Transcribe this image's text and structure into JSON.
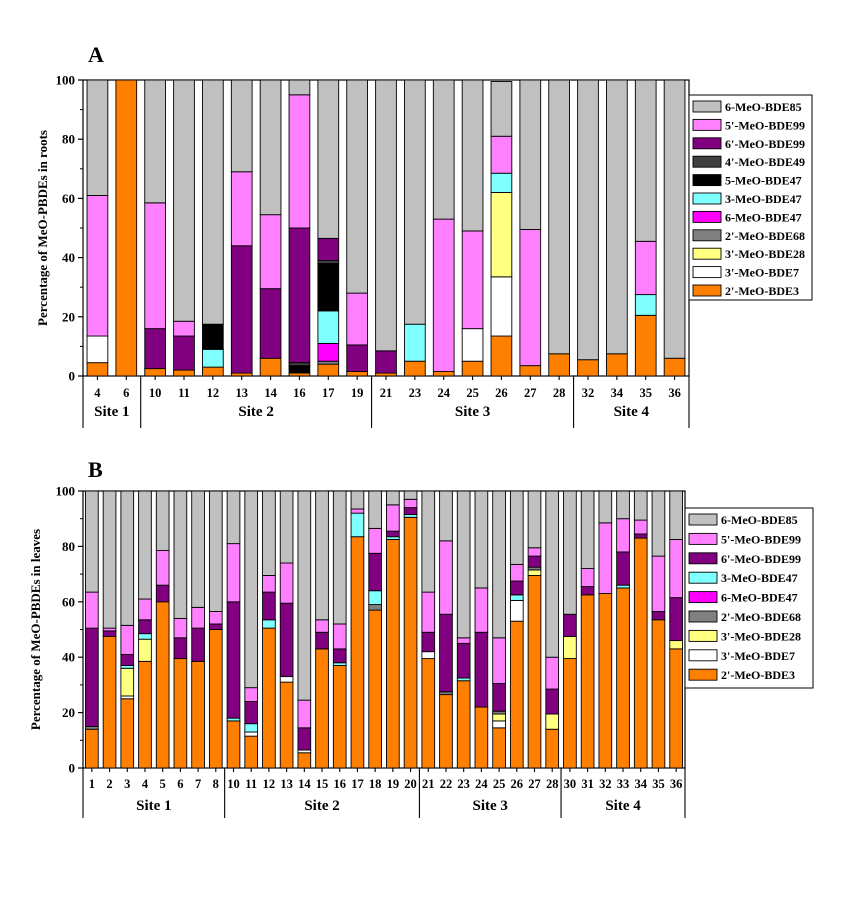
{
  "figure": {
    "background": "#ffffff"
  },
  "panels": {
    "A": {
      "letter": "A"
    },
    "B": {
      "letter": "B"
    }
  },
  "colors": {
    "6-MeO-BDE85": "#c0c0c0",
    "5'-MeO-BDE99": "#ff80ff",
    "6'-MeO-BDE99": "#800080",
    "4'-MeO-BDE49": "#404040",
    "5-MeO-BDE47": "#000000",
    "3-MeO-BDE47": "#80ffff",
    "6-MeO-BDE47": "#ff00ff",
    "2'-MeO-BDE68": "#808080",
    "3'-MeO-BDE28": "#ffff80",
    "3'-MeO-BDE7": "#ffffff",
    "2'-MeO-BDE3": "#ff8000"
  },
  "chart_data": [
    {
      "type": "bar",
      "stacked": true,
      "panel": "A",
      "title": "",
      "ylabel": "Percentage of MeO-PBDEs in roots",
      "xlabel": "",
      "ylim": [
        0,
        100
      ],
      "yticks": [
        0,
        20,
        40,
        60,
        80,
        100
      ],
      "grid": false,
      "legend_position": "right",
      "categories": [
        "4",
        "6",
        "10",
        "11",
        "12",
        "13",
        "14",
        "16",
        "17",
        "19",
        "21",
        "23",
        "24",
        "25",
        "26",
        "27",
        "28",
        "32",
        "34",
        "35",
        "36"
      ],
      "groups": [
        {
          "label": "Site 1",
          "count": 2
        },
        {
          "label": "Site 2",
          "count": 8
        },
        {
          "label": "Site 3",
          "count": 7
        },
        {
          "label": "Site 4",
          "count": 4
        }
      ],
      "legend": [
        "6-MeO-BDE85",
        "5'-MeO-BDE99",
        "6'-MeO-BDE99",
        "4'-MeO-BDE49",
        "5-MeO-BDE47",
        "3-MeO-BDE47",
        "6-MeO-BDE47",
        "2'-MeO-BDE68",
        "3'-MeO-BDE28",
        "3'-MeO-BDE7",
        "2'-MeO-BDE3"
      ],
      "series": [
        {
          "name": "2'-MeO-BDE3",
          "values": [
            4.5,
            100,
            2.5,
            2,
            3,
            1,
            6,
            1,
            4,
            1.5,
            1,
            5,
            1.5,
            5,
            13.5,
            3.5,
            7.5,
            5.5,
            7.5,
            20.5,
            6
          ]
        },
        {
          "name": "3'-MeO-BDE7",
          "values": [
            9,
            0,
            0,
            0,
            0,
            0,
            0,
            0,
            0,
            0,
            0,
            0,
            0,
            11,
            20,
            0,
            0,
            0,
            0,
            0,
            0
          ]
        },
        {
          "name": "3'-MeO-BDE28",
          "values": [
            0,
            0,
            0,
            0,
            0,
            0,
            0,
            0,
            0,
            0,
            0,
            0,
            0,
            0,
            28.5,
            0,
            0,
            0,
            0,
            0,
            0
          ]
        },
        {
          "name": "2'-MeO-BDE68",
          "values": [
            0,
            0,
            0,
            0,
            0,
            0,
            0,
            0,
            1,
            0,
            0,
            0,
            0,
            0,
            0,
            0,
            0,
            0,
            0,
            0,
            0
          ]
        },
        {
          "name": "6-MeO-BDE47",
          "values": [
            0,
            0,
            0,
            0,
            0,
            0,
            0,
            0,
            6,
            0,
            0,
            0,
            0,
            0,
            0,
            0,
            0,
            0,
            0,
            0,
            0
          ]
        },
        {
          "name": "3-MeO-BDE47",
          "values": [
            0,
            0,
            0,
            0,
            6,
            0,
            0,
            0,
            11,
            0,
            0,
            12.5,
            0,
            0,
            6.5,
            0,
            0,
            0,
            0,
            7,
            0
          ]
        },
        {
          "name": "5-MeO-BDE47",
          "values": [
            0,
            0,
            0,
            0,
            8.5,
            0,
            0,
            2.5,
            16,
            0,
            0,
            0,
            0,
            0,
            0,
            0,
            0,
            0,
            0,
            0,
            0
          ]
        },
        {
          "name": "4'-MeO-BDE49",
          "values": [
            0,
            0,
            0,
            0,
            0,
            0,
            0,
            1,
            1,
            0,
            0,
            0,
            0,
            0,
            0,
            0,
            0,
            0,
            0,
            0,
            0
          ]
        },
        {
          "name": "6'-MeO-BDE99",
          "values": [
            0,
            0,
            13.5,
            11.5,
            0,
            43,
            23.5,
            45.5,
            7.5,
            9,
            7.5,
            0,
            0,
            0,
            0,
            0,
            0,
            0,
            0,
            0,
            0
          ]
        },
        {
          "name": "5'-MeO-BDE99",
          "values": [
            47.5,
            0,
            42.5,
            5,
            0,
            25,
            25,
            45,
            0,
            17.5,
            0,
            0,
            51.5,
            33,
            12.5,
            46,
            0,
            0,
            0,
            18,
            0
          ]
        },
        {
          "name": "6-MeO-BDE85",
          "values": [
            39,
            0,
            41.5,
            81.5,
            82.5,
            31,
            45.5,
            5,
            54,
            72,
            91.5,
            82.5,
            47,
            51,
            18.5,
            50.5,
            92.5,
            94.5,
            92.5,
            54.5,
            94
          ]
        }
      ]
    },
    {
      "type": "bar",
      "stacked": true,
      "panel": "B",
      "title": "",
      "ylabel": "Percentage of MeO-PBDEs in leaves",
      "xlabel": "",
      "ylim": [
        0,
        100
      ],
      "yticks": [
        0,
        20,
        40,
        60,
        80,
        100
      ],
      "grid": false,
      "legend_position": "right",
      "categories": [
        "1",
        "2",
        "3",
        "4",
        "5",
        "6",
        "7",
        "8",
        "10",
        "11",
        "12",
        "13",
        "14",
        "15",
        "16",
        "17",
        "18",
        "19",
        "20",
        "21",
        "22",
        "23",
        "24",
        "25",
        "26",
        "27",
        "28",
        "30",
        "31",
        "32",
        "33",
        "34",
        "35",
        "36"
      ],
      "groups": [
        {
          "label": "Site 1",
          "count": 8
        },
        {
          "label": "Site 2",
          "count": 11
        },
        {
          "label": "Site 3",
          "count": 8
        },
        {
          "label": "Site 4",
          "count": 7
        }
      ],
      "legend": [
        "6-MeO-BDE85",
        "5'-MeO-BDE99",
        "6'-MeO-BDE99",
        "3-MeO-BDE47",
        "6-MeO-BDE47",
        "2'-MeO-BDE68",
        "3'-MeO-BDE28",
        "3'-MeO-BDE7",
        "2'-MeO-BDE3"
      ],
      "series": [
        {
          "name": "2'-MeO-BDE3",
          "values": [
            14,
            47.5,
            25,
            38.5,
            60,
            39.5,
            38.5,
            50,
            17,
            11.5,
            50.5,
            31,
            5.5,
            43,
            37,
            83.5,
            57,
            82.5,
            90.5,
            39.5,
            26.5,
            31.5,
            22,
            14.5,
            53,
            69.5,
            14,
            39.5,
            62.5,
            63,
            65,
            83,
            53.5,
            43
          ]
        },
        {
          "name": "3'-MeO-BDE7",
          "values": [
            0,
            0,
            1,
            0,
            0,
            0,
            0,
            0,
            0,
            1.5,
            0,
            2,
            1,
            0,
            0,
            0,
            0,
            0,
            0,
            2.5,
            0,
            0,
            0,
            2.5,
            7.5,
            0,
            0,
            0,
            0,
            0,
            0,
            0,
            0,
            0
          ]
        },
        {
          "name": "3'-MeO-BDE28",
          "values": [
            0,
            0,
            10,
            8,
            0,
            0,
            0,
            0,
            0,
            0,
            0,
            0,
            0,
            0,
            0,
            0,
            0,
            0,
            0,
            0,
            0,
            0,
            0,
            2.5,
            0,
            2,
            5.5,
            8,
            0,
            0,
            0,
            0,
            0,
            3
          ]
        },
        {
          "name": "2'-MeO-BDE68",
          "values": [
            1,
            0,
            0,
            0,
            0,
            0,
            0,
            0,
            0,
            0,
            0,
            0,
            0,
            0,
            0,
            0,
            2,
            0,
            0,
            0,
            1,
            0,
            0,
            1,
            0,
            1,
            0,
            0,
            0,
            0,
            0,
            0,
            0,
            0
          ]
        },
        {
          "name": "6-MeO-BDE47",
          "values": [
            0,
            0,
            0,
            0,
            0,
            0,
            0,
            0,
            0,
            0,
            0,
            0,
            0,
            0,
            0,
            0,
            0,
            0,
            0,
            0,
            0,
            0,
            0,
            0,
            0,
            0,
            0,
            0,
            0,
            0,
            0,
            0,
            0,
            0
          ]
        },
        {
          "name": "3-MeO-BDE47",
          "values": [
            0,
            0,
            1,
            2,
            0,
            0,
            0,
            0,
            1,
            3,
            3,
            0,
            0,
            0,
            1,
            8.5,
            5,
            1,
            1,
            0,
            0,
            1,
            0,
            0,
            2,
            0,
            0,
            0,
            0,
            0,
            1,
            0,
            0,
            0
          ]
        },
        {
          "name": "6'-MeO-BDE99",
          "values": [
            35.5,
            2,
            4,
            5,
            6,
            7.5,
            12,
            2,
            42,
            8,
            10,
            26.5,
            8,
            6,
            5,
            0,
            13.5,
            2,
            2.5,
            7,
            28,
            12.5,
            27,
            10,
            5,
            4,
            9,
            8,
            3,
            0,
            12,
            1.5,
            3,
            15.5
          ]
        },
        {
          "name": "5'-MeO-BDE99",
          "values": [
            13,
            1,
            10.5,
            7.5,
            12.5,
            7,
            7.5,
            4.5,
            21,
            5,
            6,
            14.5,
            10,
            4.5,
            9,
            1.5,
            9,
            9.5,
            3,
            14.5,
            26.5,
            2,
            16,
            16.5,
            6,
            3,
            11.5,
            0,
            6.5,
            25.5,
            12,
            5,
            20,
            21
          ]
        },
        {
          "name": "6-MeO-BDE85",
          "values": [
            36.5,
            49.5,
            48.5,
            39,
            21.5,
            46,
            42,
            43.5,
            19,
            71,
            30.5,
            26,
            75.5,
            46.5,
            48,
            6.5,
            13.5,
            5,
            3,
            36.5,
            18,
            53,
            35,
            53,
            26.5,
            20.5,
            60,
            44.5,
            28,
            11.5,
            10,
            10.5,
            23.5,
            17.5
          ]
        }
      ]
    }
  ]
}
